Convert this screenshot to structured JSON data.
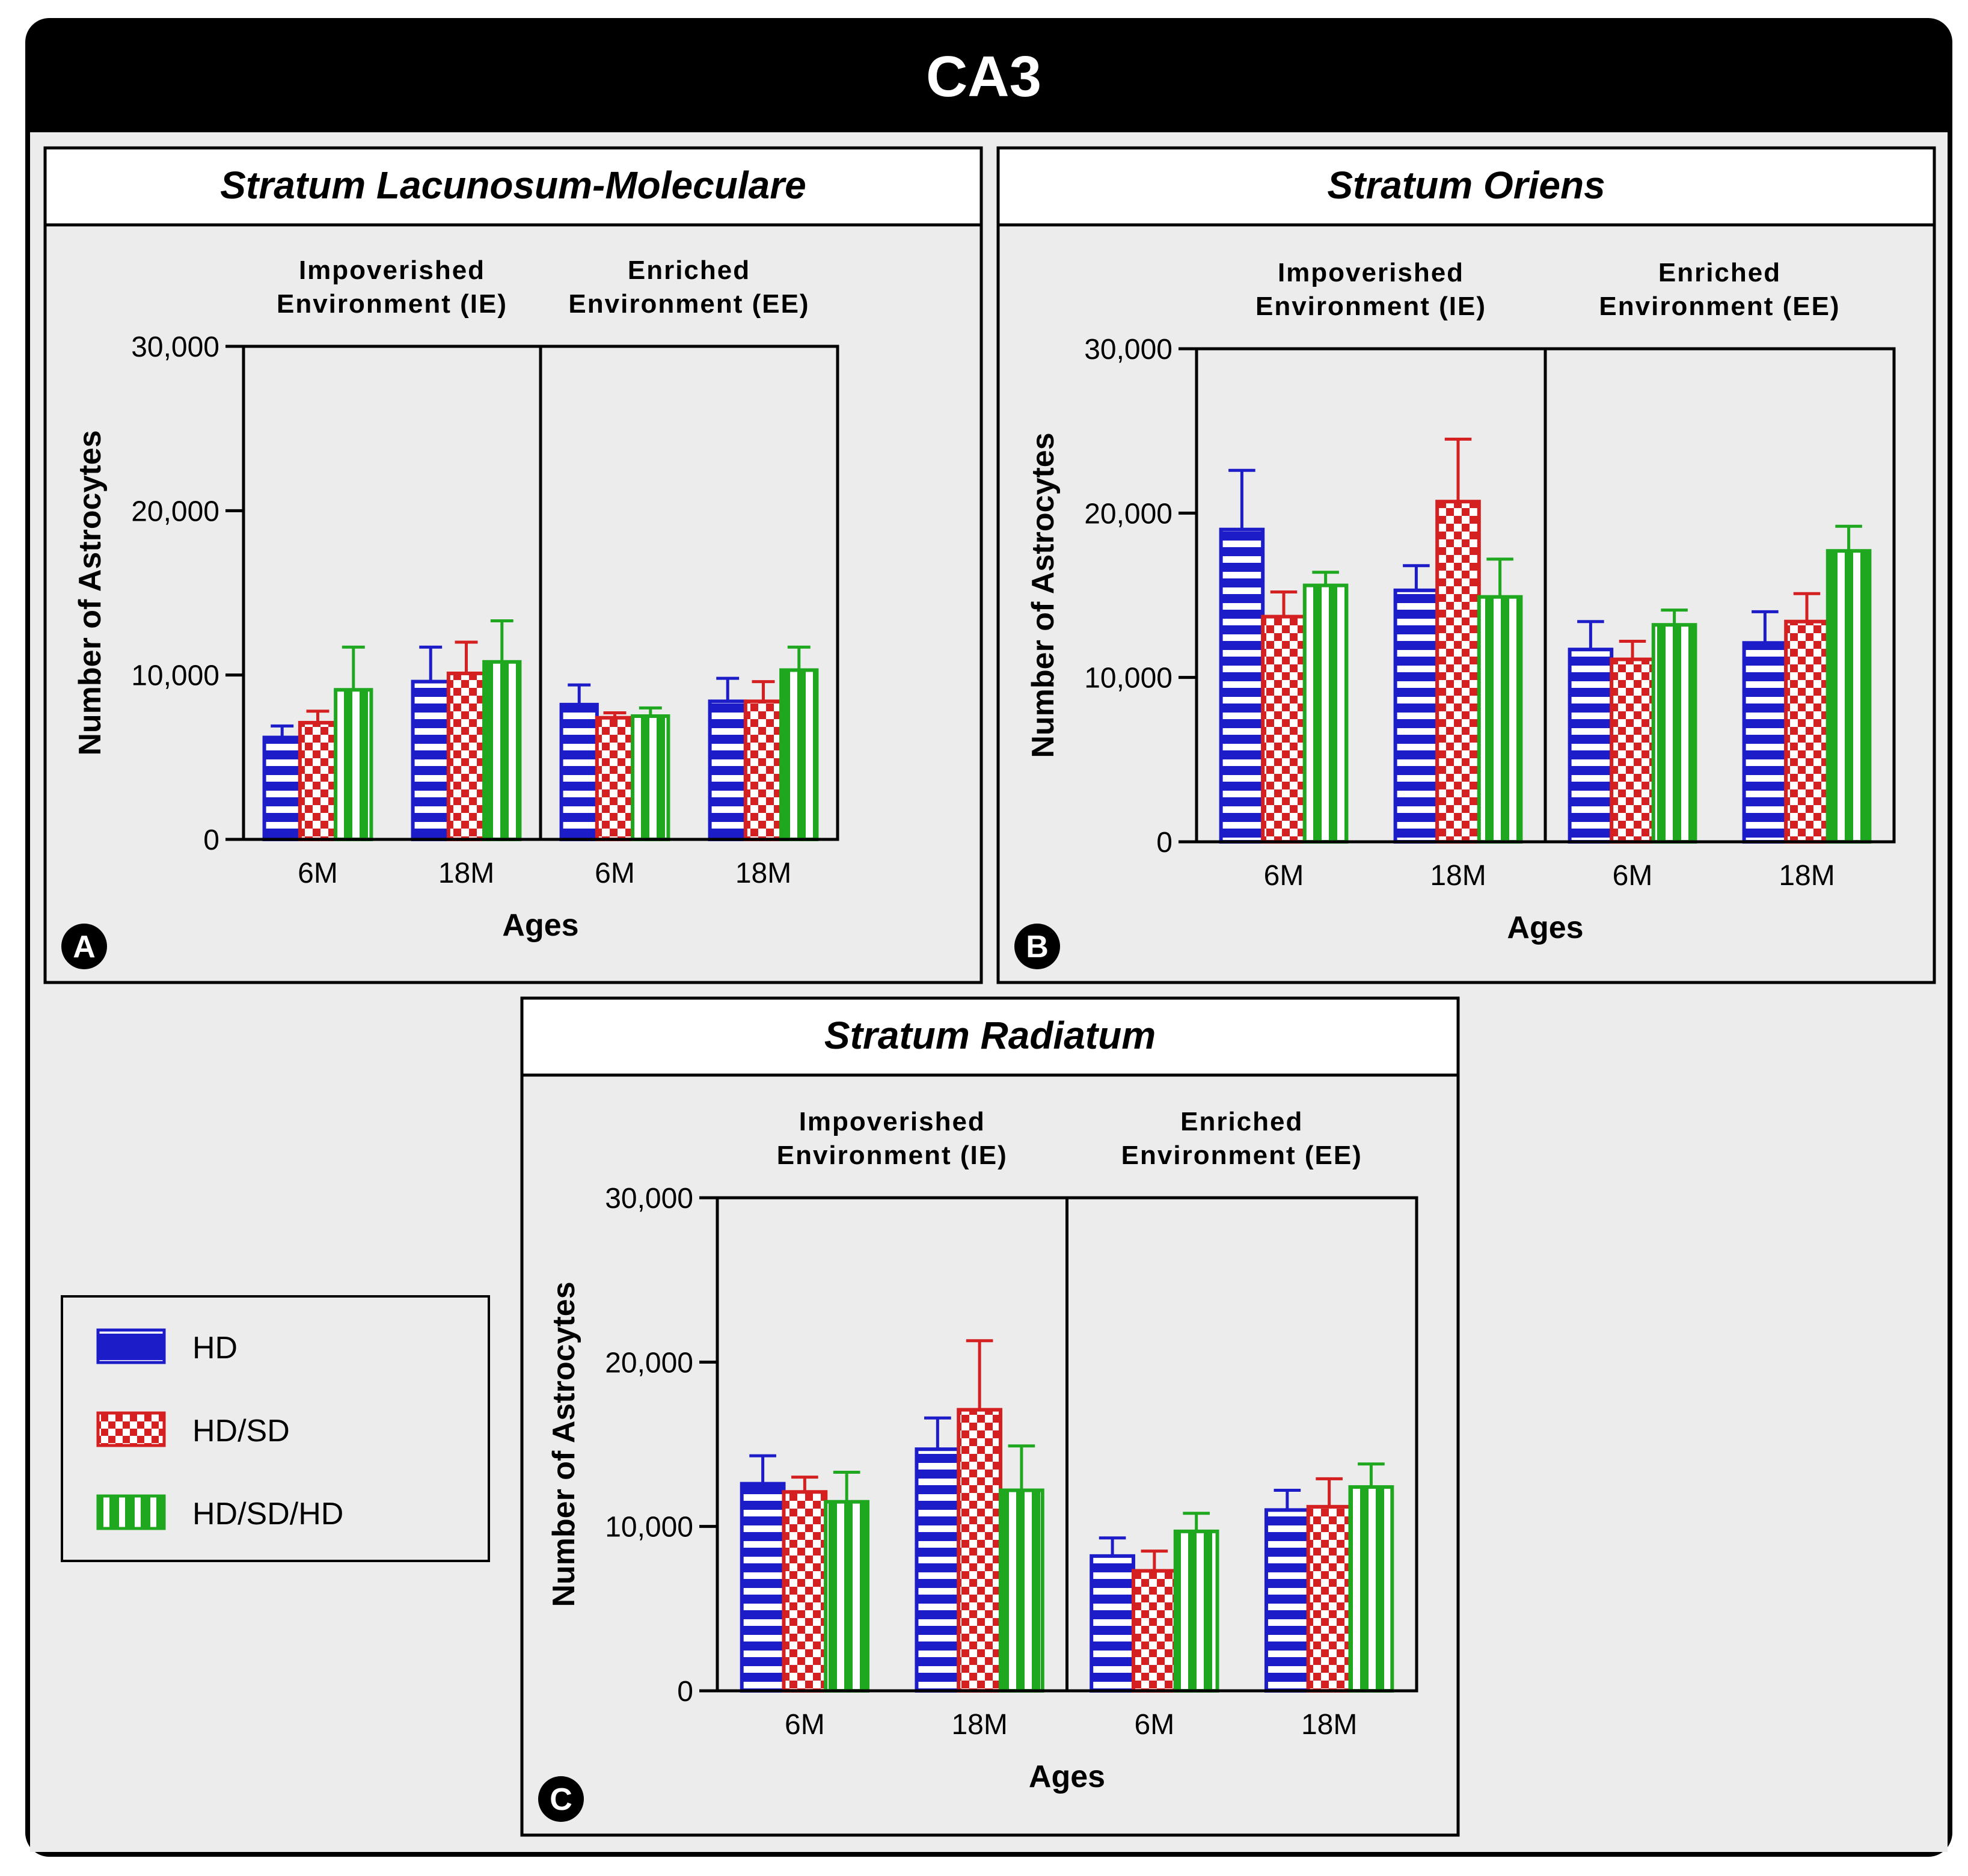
{
  "figure_title": "CA3",
  "legend": {
    "items": [
      {
        "label": "HD",
        "pattern": "stripes",
        "color": "#1c1cc8"
      },
      {
        "label": "HD/SD",
        "pattern": "checker",
        "color": "#d42020"
      },
      {
        "label": "HD/SD/HD",
        "pattern": "vbars",
        "color": "#1fa81f"
      }
    ]
  },
  "colors": {
    "HD": "#1c1cc8",
    "HD/SD": "#d42020",
    "HD/SD/HD": "#1fa81f",
    "panel_bg": "#ececec",
    "banner": "#000000"
  },
  "chart_data": [
    {
      "panel_letter": "A",
      "type": "bar",
      "title": "Stratum Lacunosum-Moleculare",
      "groups": [
        {
          "label_line1": "Impoverished",
          "label_line2": "Environment (IE)"
        },
        {
          "label_line1": "Enriched",
          "label_line2": "Environment (EE)"
        }
      ],
      "categories": [
        "6M",
        "18M",
        "6M",
        "18M"
      ],
      "xlabel": "Ages",
      "ylabel": "Number of Astrocytes",
      "ylim": [
        0,
        30000
      ],
      "yticks": [
        "0",
        "10,000",
        "20,000",
        "30,000"
      ],
      "series": [
        {
          "name": "HD",
          "values": [
            6200,
            9600,
            8200,
            8400
          ],
          "errors": [
            700,
            2100,
            1200,
            1400
          ]
        },
        {
          "name": "HD/SD",
          "values": [
            7100,
            10100,
            7400,
            8400
          ],
          "errors": [
            700,
            1900,
            300,
            1200
          ]
        },
        {
          "name": "HD/SD/HD",
          "values": [
            9100,
            10800,
            7500,
            10300
          ],
          "errors": [
            2600,
            2500,
            500,
            1400
          ]
        }
      ]
    },
    {
      "panel_letter": "B",
      "type": "bar",
      "title": "Stratum Oriens",
      "groups": [
        {
          "label_line1": "Impoverished",
          "label_line2": "Environment (IE)"
        },
        {
          "label_line1": "Enriched",
          "label_line2": "Environment (EE)"
        }
      ],
      "categories": [
        "6M",
        "18M",
        "6M",
        "18M"
      ],
      "xlabel": "Ages",
      "ylabel": "Number of Astrocytes",
      "ylim": [
        0,
        30000
      ],
      "yticks": [
        "0",
        "10,000",
        "20,000",
        "30,000"
      ],
      "series": [
        {
          "name": "HD",
          "values": [
            19000,
            15300,
            11700,
            12100
          ],
          "errors": [
            3600,
            1500,
            1700,
            1900
          ]
        },
        {
          "name": "HD/SD",
          "values": [
            13700,
            20700,
            11100,
            13400
          ],
          "errors": [
            1500,
            3800,
            1100,
            1700
          ]
        },
        {
          "name": "HD/SD/HD",
          "values": [
            15600,
            14900,
            13200,
            17700
          ],
          "errors": [
            800,
            2300,
            900,
            1500
          ]
        }
      ]
    },
    {
      "panel_letter": "C",
      "type": "bar",
      "title": "Stratum Radiatum",
      "groups": [
        {
          "label_line1": "Impoverished",
          "label_line2": "Environment (IE)"
        },
        {
          "label_line1": "Enriched",
          "label_line2": "Environment (EE)"
        }
      ],
      "categories": [
        "6M",
        "18M",
        "6M",
        "18M"
      ],
      "xlabel": "Ages",
      "ylabel": "Number of Astrocytes",
      "ylim": [
        0,
        30000
      ],
      "yticks": [
        "0",
        "10,000",
        "20,000",
        "30,000"
      ],
      "series": [
        {
          "name": "HD",
          "values": [
            12600,
            14700,
            8200,
            11000
          ],
          "errors": [
            1700,
            1900,
            1100,
            1200
          ]
        },
        {
          "name": "HD/SD",
          "values": [
            12100,
            17100,
            7300,
            11200
          ],
          "errors": [
            900,
            4200,
            1200,
            1700
          ]
        },
        {
          "name": "HD/SD/HD",
          "values": [
            11500,
            12200,
            9700,
            12400
          ],
          "errors": [
            1800,
            2700,
            1100,
            1400
          ]
        }
      ]
    }
  ]
}
